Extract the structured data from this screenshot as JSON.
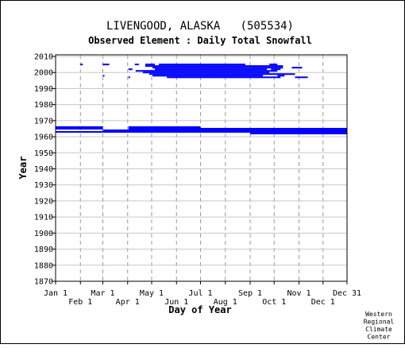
{
  "chart_data": {
    "type": "bar",
    "title": "LIVENGOOD, ALASKA   (505534)",
    "subtitle": "Observed Element : Daily Total Snowfall",
    "xlabel": "Day of Year",
    "ylabel": "Year",
    "xlim": [
      1,
      365
    ],
    "ylim": [
      1870,
      2011
    ],
    "yticks": [
      1870,
      1880,
      1890,
      1900,
      1910,
      1920,
      1930,
      1940,
      1950,
      1960,
      1970,
      1980,
      1990,
      2000,
      2010
    ],
    "xticks_top": [
      {
        "label": "Jan 1",
        "day": 1
      },
      {
        "label": "Mar 1",
        "day": 60
      },
      {
        "label": "May 1",
        "day": 121
      },
      {
        "label": "Jul 1",
        "day": 182
      },
      {
        "label": "Sep 1",
        "day": 244
      },
      {
        "label": "Nov 1",
        "day": 305
      },
      {
        "label": "Dec 31",
        "day": 365
      }
    ],
    "xticks_bottom": [
      {
        "label": "Feb 1",
        "day": 32
      },
      {
        "label": "Apr 1",
        "day": 91
      },
      {
        "label": "Jun 1",
        "day": 152
      },
      {
        "label": "Aug 1",
        "day": 213
      },
      {
        "label": "Oct 1",
        "day": 274
      },
      {
        "label": "Dec 1",
        "day": 335
      }
    ],
    "gridlines_x": [
      32,
      60,
      91,
      121,
      152,
      182,
      213,
      244,
      274,
      305,
      335
    ],
    "grid": true,
    "bar_color": "#0000ff",
    "segments": [
      {
        "year": 1966,
        "start": 1,
        "end": 60
      },
      {
        "year": 1965,
        "start": 1,
        "end": 60
      },
      {
        "year": 1963,
        "start": 1,
        "end": 60
      },
      {
        "year": 1966,
        "start": 92,
        "end": 182
      },
      {
        "year": 1965,
        "start": 92,
        "end": 365
      },
      {
        "year": 1964,
        "start": 60,
        "end": 365
      },
      {
        "year": 1963,
        "start": 60,
        "end": 365
      },
      {
        "year": 1962,
        "start": 244,
        "end": 365
      },
      {
        "year": 2005,
        "start": 32,
        "end": 35
      },
      {
        "year": 2005,
        "start": 60,
        "end": 68
      },
      {
        "year": 2005,
        "start": 100,
        "end": 105
      },
      {
        "year": 2005,
        "start": 113,
        "end": 125
      },
      {
        "year": 2005,
        "start": 130,
        "end": 238
      },
      {
        "year": 2005,
        "start": 268,
        "end": 278
      },
      {
        "year": 2004,
        "start": 113,
        "end": 285
      },
      {
        "year": 2003,
        "start": 122,
        "end": 285
      },
      {
        "year": 2003,
        "start": 296,
        "end": 309
      },
      {
        "year": 2002,
        "start": 92,
        "end": 97
      },
      {
        "year": 2002,
        "start": 125,
        "end": 265
      },
      {
        "year": 2002,
        "start": 270,
        "end": 282
      },
      {
        "year": 2001,
        "start": 101,
        "end": 278
      },
      {
        "year": 2000,
        "start": 110,
        "end": 268
      },
      {
        "year": 1999,
        "start": 118,
        "end": 300
      },
      {
        "year": 1998,
        "start": 60,
        "end": 62
      },
      {
        "year": 1998,
        "start": 122,
        "end": 260
      },
      {
        "year": 1998,
        "start": 278,
        "end": 287
      },
      {
        "year": 1997,
        "start": 92,
        "end": 94
      },
      {
        "year": 1997,
        "start": 140,
        "end": 282
      },
      {
        "year": 1997,
        "start": 300,
        "end": 316
      }
    ],
    "credit": [
      "Western",
      "Regional",
      "Climate",
      "Center"
    ]
  }
}
